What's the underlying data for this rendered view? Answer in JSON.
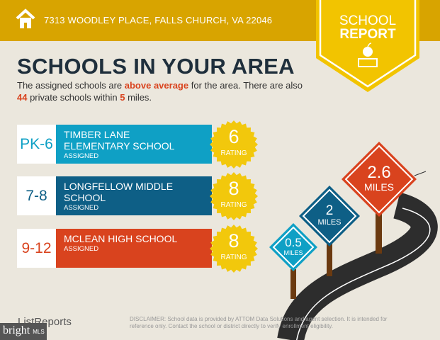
{
  "header": {
    "address": "7313 WOODLEY PLACE, FALLS CHURCH, VA 22046",
    "icon": "home-icon"
  },
  "badge": {
    "line1": "SCHOOL",
    "line2": "REPORT",
    "icon": "apple-books-icon"
  },
  "title": "SCHOOLS IN YOUR AREA",
  "summary": {
    "pre": "The assigned schools are ",
    "highlight": "above average",
    "mid": " for the area. There are also ",
    "private_count": "44",
    "mid2": " private schools within ",
    "miles": "5",
    "post": " miles."
  },
  "schools": [
    {
      "grade": "PK-6",
      "name": "TIMBER LANE ELEMENTARY SCHOOL",
      "status": "ASSIGNED",
      "rating": "6",
      "rating_label": "RATING",
      "color": "#0fa0c5"
    },
    {
      "grade": "7-8",
      "name": "LONGFELLOW MIDDLE SCHOOL",
      "status": "ASSIGNED",
      "rating": "8",
      "rating_label": "RATING",
      "color": "#0e5f86"
    },
    {
      "grade": "9-12",
      "name": "MCLEAN HIGH SCHOOL",
      "status": "ASSIGNED",
      "rating": "8",
      "rating_label": "RATING",
      "color": "#d9431e"
    }
  ],
  "signs": [
    {
      "distance": "0.5",
      "unit": "MILES",
      "color": "#0fa0c5"
    },
    {
      "distance": "2",
      "unit": "MILES",
      "color": "#0e5f86"
    },
    {
      "distance": "2.6",
      "unit": "MILES",
      "color": "#d9431e"
    }
  ],
  "footer": {
    "logo": "ListReports",
    "disclaimer_label": "DISCLAIMER:",
    "disclaimer": " School data is provided by ATTOM Data Solutions and agent selection. It is intended for reference only. Contact the school or district directly to verify enrollment eligibility.",
    "watermark": "bright",
    "watermark_sub": "MLS"
  }
}
